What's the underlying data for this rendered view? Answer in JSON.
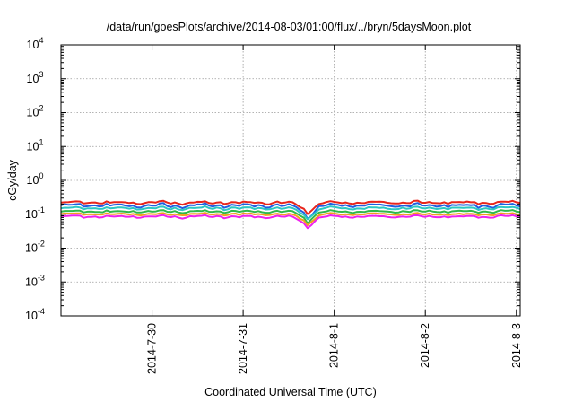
{
  "chart_data": {
    "type": "line",
    "title": "/data/run/goesPlots/archive/2014-08-03/01:00/flux/../bryn/5daysMoon.plot",
    "xlabel": "Coordinated Universal Time (UTC)",
    "ylabel": "cGy/day",
    "y_scale": "log",
    "ylim": [
      0.0001,
      10000
    ],
    "xlim": [
      "2014-07-29 00:00",
      "2014-08-03 01:00"
    ],
    "y_ticks": [
      {
        "value": 0.0001,
        "base": "10",
        "exp": "-4"
      },
      {
        "value": 0.001,
        "base": "10",
        "exp": "-3"
      },
      {
        "value": 0.01,
        "base": "10",
        "exp": "-2"
      },
      {
        "value": 0.1,
        "base": "10",
        "exp": "-1"
      },
      {
        "value": 1,
        "base": "10",
        "exp": "0"
      },
      {
        "value": 10,
        "base": "10",
        "exp": "1"
      },
      {
        "value": 100,
        "base": "10",
        "exp": "2"
      },
      {
        "value": 1000,
        "base": "10",
        "exp": "3"
      },
      {
        "value": 10000,
        "base": "10",
        "exp": "4"
      }
    ],
    "x_ticks": [
      "2014-7-30",
      "2014-7-31",
      "2014-8-1",
      "2014-8-2",
      "2014-8-3"
    ],
    "x_tick_dates": [
      "2014-07-30",
      "2014-07-31",
      "2014-08-01",
      "2014-08-02",
      "2014-08-03"
    ],
    "grid": true,
    "dip": {
      "date": "2014-07-31 17:00",
      "factor": 0.55
    },
    "series": [
      {
        "color": "#e8251c",
        "baseline": 0.22,
        "amplitude": 0.16
      },
      {
        "color": "#1f5fe0",
        "baseline": 0.18,
        "amplitude": 0.22
      },
      {
        "color": "#2cc7c3",
        "baseline": 0.15,
        "amplitude": 0.16
      },
      {
        "color": "#2fb84a",
        "baseline": 0.12,
        "amplitude": 0.14
      },
      {
        "color": "#f0a01e",
        "baseline": 0.1,
        "amplitude": 0.12
      },
      {
        "color": "#ee22ee",
        "baseline": 0.085,
        "amplitude": 0.14
      }
    ]
  }
}
